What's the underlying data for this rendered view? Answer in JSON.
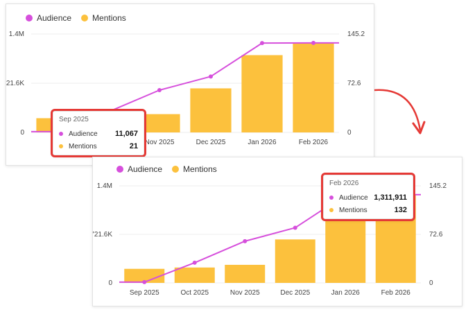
{
  "colors": {
    "audience": "#d64fdc",
    "mentions": "#fcc13d",
    "grid": "#ececec",
    "highlight": "#e53935"
  },
  "legend": {
    "audience": "Audience",
    "mentions": "Mentions"
  },
  "chart_data": [
    {
      "type": "bar",
      "categories": [
        "Sep 2025",
        "Oct 2025",
        "Nov 2025",
        "Dec 2025",
        "Jan 2026",
        "Feb 2026"
      ],
      "visible_tick_labels": [
        "Sep",
        "",
        "Nov 2025",
        "Dec 2025",
        "Jan 2026",
        "Feb 2026"
      ],
      "series": [
        {
          "name": "Mentions",
          "type": "bar",
          "axis": "right",
          "values": [
            21,
            23,
            27,
            65,
            114,
            132
          ]
        },
        {
          "name": "Audience",
          "type": "line",
          "axis": "left",
          "values": [
            11067,
            300000,
            620000,
            820000,
            1310000,
            1311911
          ]
        }
      ],
      "y_left_ticks": [
        "0",
        "721.6K",
        "1.4M"
      ],
      "y_right_ticks": [
        "0",
        "72.6",
        "145.2"
      ],
      "ylim_left": [
        0,
        1443200
      ],
      "ylim_right": [
        0,
        145.2
      ],
      "tooltip": {
        "title": "Sep 2025",
        "audience": "11,067",
        "mentions": "21"
      }
    },
    {
      "type": "bar",
      "categories": [
        "Sep 2025",
        "Oct 2025",
        "Nov 2025",
        "Dec 2025",
        "Jan 2026",
        "Feb 2026"
      ],
      "visible_tick_labels": [
        "Sep 2025",
        "Oct 2025",
        "Nov 2025",
        "Dec 2025",
        "Jan 2026",
        "Feb 2026"
      ],
      "series": [
        {
          "name": "Mentions",
          "type": "bar",
          "axis": "right",
          "values": [
            21,
            23,
            27,
            65,
            114,
            132
          ]
        },
        {
          "name": "Audience",
          "type": "line",
          "axis": "left",
          "values": [
            11067,
            300000,
            620000,
            820000,
            1310000,
            1311911
          ]
        }
      ],
      "y_left_ticks": [
        "0",
        "721.6K",
        "1.4M"
      ],
      "y_right_ticks": [
        "0",
        "72.6",
        "145.2"
      ],
      "ylim_left": [
        0,
        1443200
      ],
      "ylim_right": [
        0,
        145.2
      ],
      "tooltip": {
        "title": "Feb 2026",
        "audience": "1,311,911",
        "mentions": "132"
      }
    }
  ]
}
